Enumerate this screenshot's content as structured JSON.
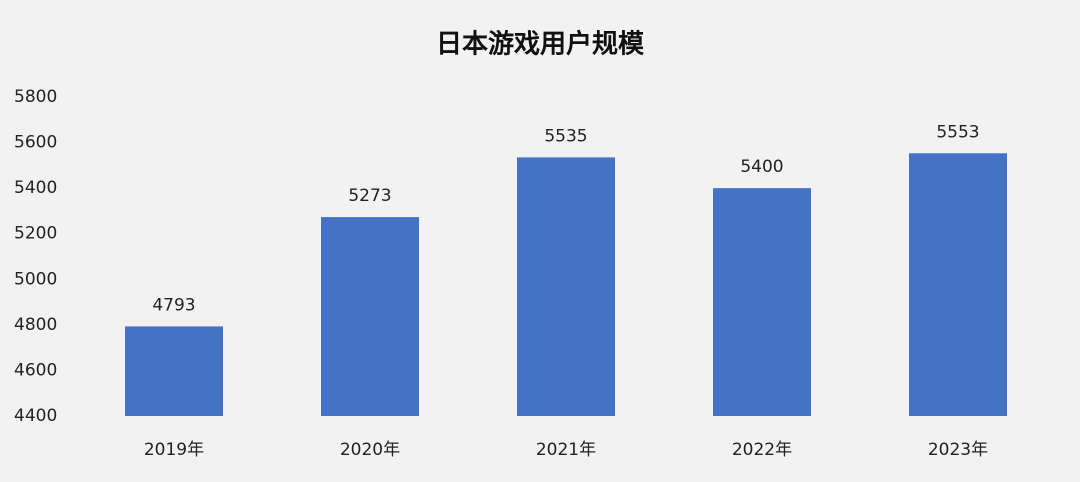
{
  "chart_data": {
    "type": "bar",
    "title": "日本游戏用户规模",
    "categories": [
      "2019年",
      "2020年",
      "2021年",
      "2022年",
      "2023年"
    ],
    "values": [
      4793,
      5273,
      5535,
      5400,
      5553
    ],
    "color": "#4472c4",
    "ylim": [
      4400,
      5800
    ],
    "yticks": [
      4400,
      4600,
      4800,
      5000,
      5200,
      5400,
      5600,
      5800
    ],
    "grid": false
  }
}
